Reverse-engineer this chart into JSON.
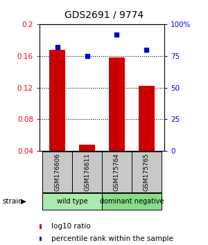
{
  "title": "GDS2691 / 9774",
  "samples": [
    "GSM176606",
    "GSM176611",
    "GSM175764",
    "GSM175765"
  ],
  "log10_ratio": [
    0.168,
    0.048,
    0.158,
    0.122
  ],
  "percentile_rank": [
    82,
    75,
    92,
    80
  ],
  "groups": [
    {
      "label": "wild type",
      "color": "#AAEAAA",
      "samples": [
        0,
        1
      ]
    },
    {
      "label": "dominant negative",
      "color": "#88DD88",
      "samples": [
        2,
        3
      ]
    }
  ],
  "bar_color": "#CC0000",
  "dot_color": "#0000CC",
  "ylim_left": [
    0.04,
    0.2
  ],
  "ylim_right": [
    0,
    100
  ],
  "yticks_left": [
    0.04,
    0.08,
    0.12,
    0.16,
    0.2
  ],
  "yticks_right": [
    0,
    25,
    50,
    75,
    100
  ],
  "ytick_labels_right": [
    "0",
    "25",
    "50",
    "75",
    "100%"
  ],
  "gray_color": "#C8C8C8",
  "background_color": "#ffffff"
}
